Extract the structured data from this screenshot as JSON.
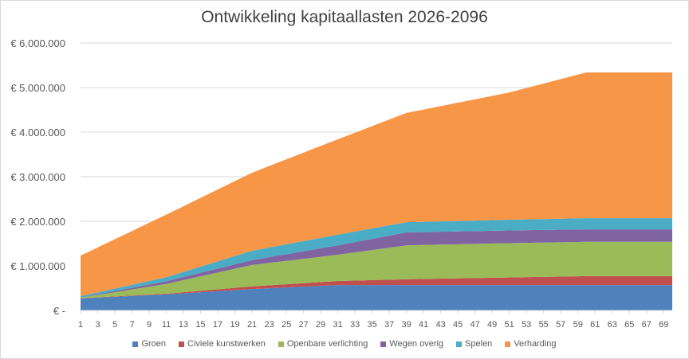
{
  "chart_data": {
    "type": "area",
    "stacked": true,
    "title": "Ontwikkeling kapitaallasten 2026-2096",
    "xlabel": "",
    "ylabel": "",
    "ylim": [
      0,
      6000000
    ],
    "y_ticks": [
      0,
      1000000,
      2000000,
      3000000,
      4000000,
      5000000,
      6000000
    ],
    "y_tick_labels": [
      "€ -",
      "€ 1.000.000",
      "€ 2.000.000",
      "€ 3.000.000",
      "€ 4.000.000",
      "€ 5.000.000",
      "€ 6.000.000"
    ],
    "x_range": [
      1,
      70
    ],
    "x_tick_labels": [
      "1",
      "3",
      "5",
      "7",
      "9",
      "11",
      "13",
      "15",
      "17",
      "19",
      "21",
      "23",
      "25",
      "27",
      "29",
      "31",
      "33",
      "35",
      "37",
      "39",
      "41",
      "43",
      "45",
      "47",
      "49",
      "51",
      "53",
      "55",
      "57",
      "59",
      "61",
      "63",
      "65",
      "67",
      "69"
    ],
    "grid": true,
    "legend_position": "bottom",
    "keypoints_x": [
      1,
      11,
      21,
      31,
      39,
      51,
      60,
      70
    ],
    "series": [
      {
        "name": "Groen",
        "color": "#4f81bd",
        "values": [
          270000,
          360000,
          480000,
          570000,
          570000,
          570000,
          570000,
          570000
        ]
      },
      {
        "name": "Civiele kunstwerken",
        "color": "#c0504d",
        "values": [
          5000,
          15000,
          60000,
          90000,
          130000,
          170000,
          200000,
          200000
        ]
      },
      {
        "name": "Openbare verlichting",
        "color": "#9bbb59",
        "values": [
          10000,
          220000,
          480000,
          590000,
          760000,
          770000,
          770000,
          770000
        ]
      },
      {
        "name": "Wegen overig",
        "color": "#8064a2",
        "values": [
          5000,
          60000,
          110000,
          210000,
          290000,
          285000,
          280000,
          280000
        ]
      },
      {
        "name": "Spelen",
        "color": "#4bacc6",
        "values": [
          30000,
          90000,
          210000,
          240000,
          230000,
          240000,
          250000,
          250000
        ]
      },
      {
        "name": "Verharding",
        "color": "#f79646",
        "values": [
          910000,
          1405000,
          1750000,
          2140000,
          2450000,
          2855000,
          3270000,
          3270000
        ]
      }
    ]
  }
}
